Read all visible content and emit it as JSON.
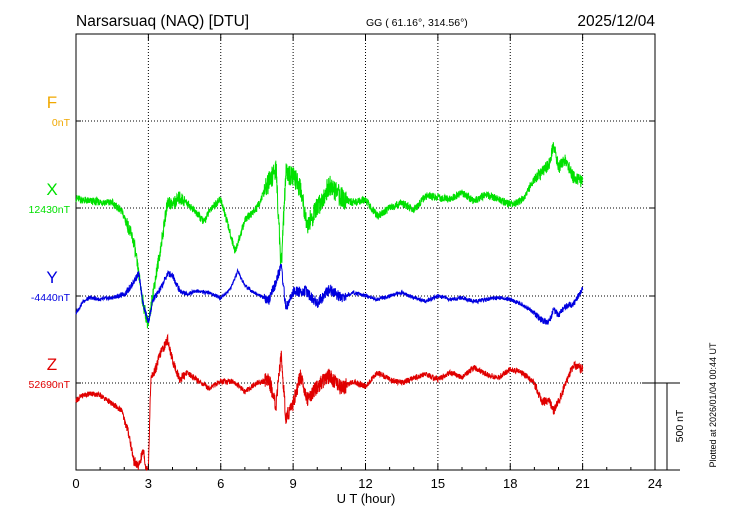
{
  "header": {
    "station": "Narsarsuaq (NAQ)  [DTU]",
    "coords": "GG ( 61.16°, 314.56°)",
    "date": "2025/12/04"
  },
  "footer_note": "Plotted at 2026/01/04 00:44 UT",
  "chart_data": {
    "type": "line",
    "xlabel": "U T (hour)",
    "xlim": [
      0,
      24
    ],
    "x_ticks": [
      "0",
      "3",
      "6",
      "9",
      "12",
      "15",
      "18",
      "21",
      "24"
    ],
    "grid": true,
    "scale_bar": {
      "label": "500 nT",
      "value_nT": 500
    },
    "series": [
      {
        "name": "F",
        "baseline_label": "0nT",
        "color": "#f0a800",
        "x": [],
        "y": []
      },
      {
        "name": "X",
        "baseline_label": "12430nT",
        "color": "#00e000",
        "x": [
          0,
          0.5,
          1.0,
          1.5,
          1.9,
          2.2,
          2.4,
          2.6,
          2.8,
          3.0,
          3.2,
          3.5,
          3.8,
          4.0,
          4.3,
          4.6,
          5.0,
          5.3,
          5.6,
          6.0,
          6.3,
          6.6,
          7.0,
          7.5,
          8.0,
          8.3,
          8.5,
          8.7,
          9.0,
          9.3,
          9.6,
          10.0,
          10.5,
          11.0,
          11.5,
          12.0,
          12.5,
          13.0,
          13.5,
          14.0,
          14.5,
          15.0,
          15.5,
          16.0,
          16.5,
          17.0,
          17.5,
          18.0,
          18.3,
          18.6,
          19.0,
          19.3,
          19.6,
          19.8,
          20.0,
          20.3,
          20.6,
          21.0
        ],
        "y": [
          55,
          40,
          35,
          30,
          -20,
          -120,
          -200,
          -380,
          -560,
          -680,
          -480,
          -240,
          40,
          20,
          60,
          30,
          -30,
          -80,
          0,
          50,
          -100,
          -250,
          -70,
          0,
          150,
          220,
          -350,
          200,
          180,
          120,
          -100,
          0,
          130,
          60,
          30,
          50,
          -50,
          0,
          30,
          -10,
          70,
          60,
          50,
          90,
          40,
          80,
          50,
          20,
          30,
          60,
          170,
          200,
          250,
          370,
          230,
          280,
          180,
          150
        ]
      },
      {
        "name": "Y",
        "baseline_label": "-4440nT",
        "color": "#0000e0",
        "x": [
          0,
          0.3,
          0.6,
          1.0,
          1.5,
          2.0,
          2.3,
          2.6,
          2.8,
          3.0,
          3.2,
          3.5,
          3.8,
          4.0,
          4.3,
          4.6,
          5.0,
          5.5,
          6.0,
          6.4,
          6.7,
          7.0,
          7.5,
          8.0,
          8.3,
          8.5,
          8.7,
          9.0,
          9.5,
          10.0,
          10.5,
          11.0,
          11.5,
          12.0,
          12.5,
          13.0,
          13.5,
          14.0,
          14.5,
          15.0,
          15.5,
          16.0,
          16.5,
          17.0,
          17.5,
          18.0,
          18.5,
          19.0,
          19.3,
          19.6,
          19.8,
          20.0,
          20.3,
          20.6,
          21.0
        ],
        "y": [
          -100,
          -30,
          -10,
          -20,
          -10,
          10,
          60,
          130,
          -60,
          -150,
          -20,
          40,
          130,
          120,
          30,
          10,
          30,
          20,
          -10,
          40,
          140,
          60,
          10,
          -20,
          80,
          180,
          -70,
          20,
          30,
          -40,
          40,
          -10,
          20,
          0,
          -20,
          0,
          20,
          -10,
          -30,
          0,
          -20,
          -10,
          -30,
          -20,
          -10,
          -20,
          -50,
          -100,
          -140,
          -150,
          -80,
          -110,
          -60,
          -50,
          40
        ]
      },
      {
        "name": "Z",
        "baseline_label": "52690nT",
        "color": "#e00000",
        "x": [
          0,
          0.3,
          0.6,
          1.0,
          1.5,
          1.9,
          2.2,
          2.4,
          2.6,
          2.8,
          2.9,
          3.0,
          3.1,
          3.3,
          3.5,
          3.8,
          4.0,
          4.3,
          4.6,
          5.0,
          5.5,
          6.0,
          6.5,
          7.0,
          7.5,
          8.0,
          8.3,
          8.5,
          8.7,
          9.0,
          9.3,
          9.6,
          10.0,
          10.5,
          11.0,
          11.5,
          12.0,
          12.5,
          13.0,
          13.5,
          14.0,
          14.5,
          15.0,
          15.5,
          16.0,
          16.5,
          17.0,
          17.5,
          18.0,
          18.5,
          19.0,
          19.3,
          19.6,
          19.8,
          20.0,
          20.3,
          20.6,
          21.0
        ],
        "y": [
          -100,
          -70,
          -60,
          -70,
          -120,
          -160,
          -300,
          -450,
          -480,
          -380,
          -500,
          -480,
          20,
          80,
          170,
          250,
          130,
          20,
          60,
          20,
          -30,
          10,
          10,
          -50,
          0,
          20,
          -130,
          160,
          -200,
          -120,
          40,
          -90,
          -20,
          40,
          -30,
          10,
          -20,
          60,
          20,
          0,
          30,
          50,
          20,
          60,
          30,
          90,
          50,
          30,
          80,
          60,
          0,
          -110,
          -100,
          -160,
          -110,
          0,
          100,
          80
        ]
      }
    ]
  }
}
